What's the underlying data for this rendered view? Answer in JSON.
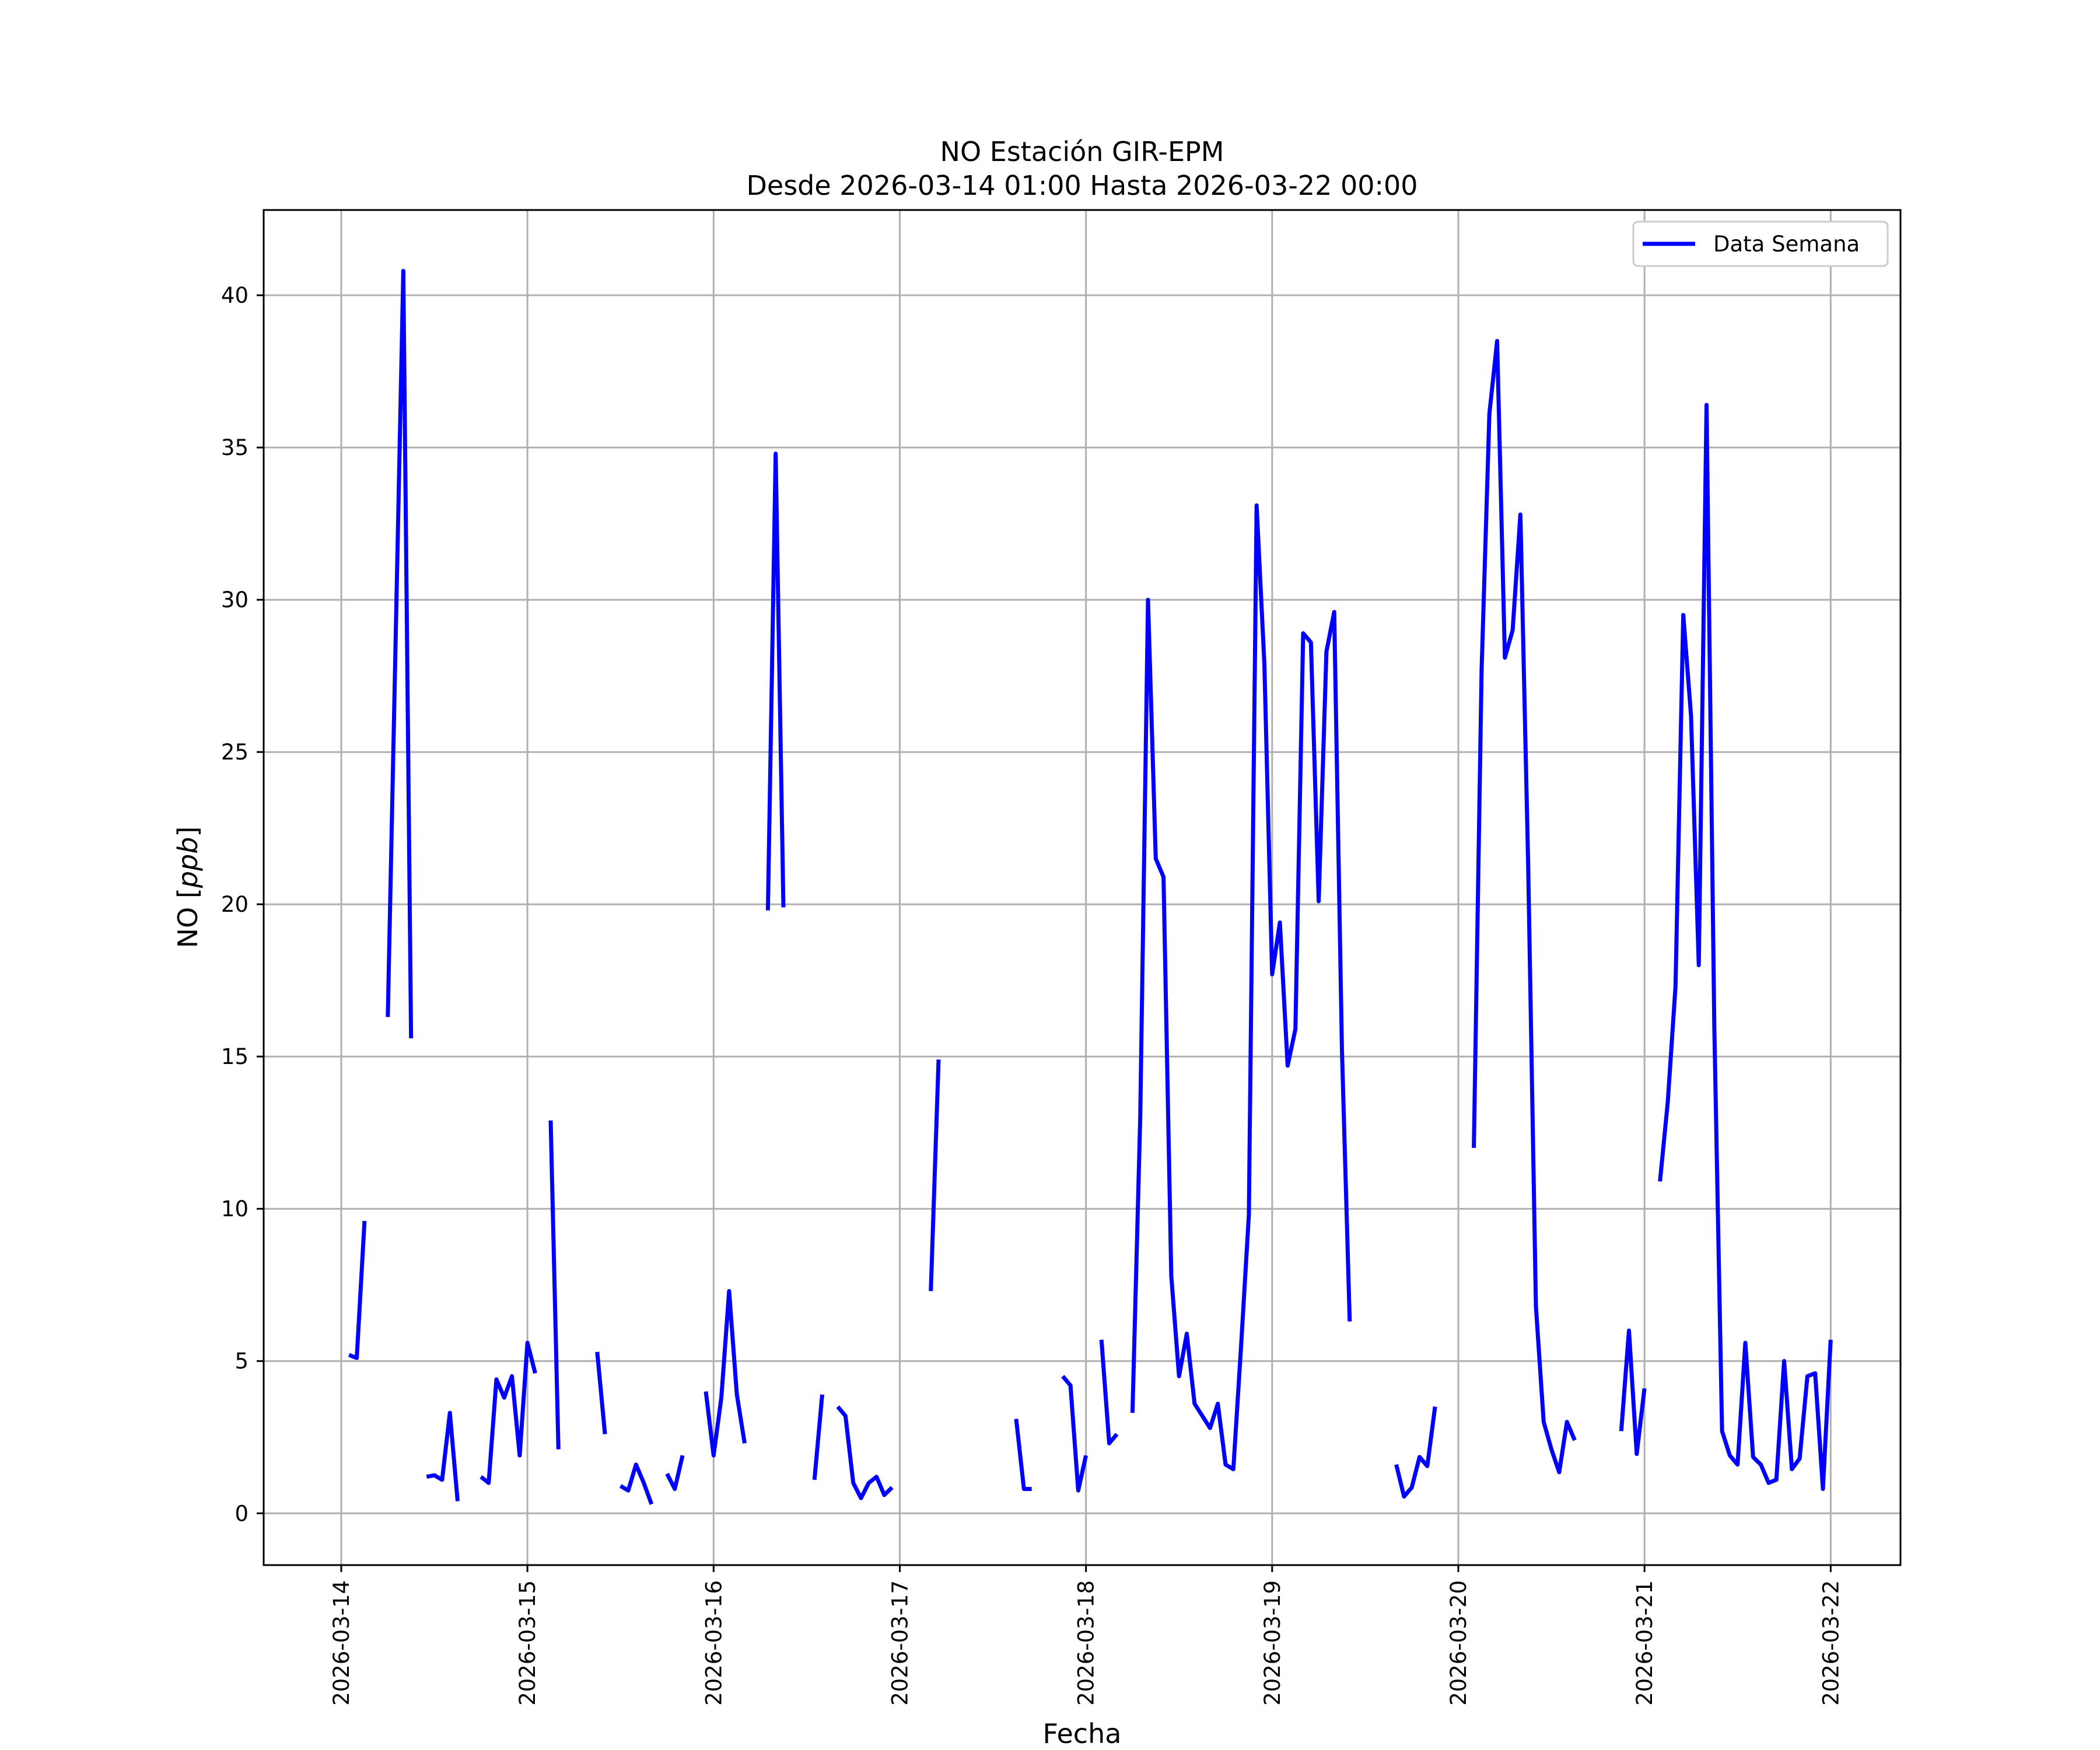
{
  "chart_data": {
    "type": "line",
    "title": "NO Estación GIR-EPM",
    "subtitle": "Desde 2026-03-14 01:00 Hasta 2026-03-22 00:00",
    "xlabel": "Fecha",
    "ylabel": "NO [ppb]",
    "ylabel_text": "NO [",
    "ylabel_unit": "ppb",
    "ylabel_close": "]",
    "x_start": "2026-03-14 00:00",
    "xlim": [
      "2026-03-13 14:00",
      "2026-03-22 09:00"
    ],
    "ylim": [
      -1.7,
      42.8
    ],
    "x_ticks": [
      "2026-03-14",
      "2026-03-15",
      "2026-03-16",
      "2026-03-17",
      "2026-03-18",
      "2026-03-19",
      "2026-03-20",
      "2026-03-21",
      "2026-03-22"
    ],
    "y_ticks": [
      "0",
      "5",
      "10",
      "15",
      "20",
      "25",
      "30",
      "35",
      "40"
    ],
    "y_tick_values": [
      0,
      5,
      10,
      15,
      20,
      25,
      30,
      35,
      40
    ],
    "grid": true,
    "legend_position": "top-right",
    "series": [
      {
        "name": "Data Semana",
        "color": "#0000ff",
        "segments": [
          [
            [
              "2026-03-14 01:00",
              5.2
            ],
            [
              "2026-03-14 02:00",
              5.1
            ],
            [
              "2026-03-14 03:00",
              9.6
            ]
          ],
          [
            [
              "2026-03-14 06:00",
              16.3
            ],
            [
              "2026-03-14 08:00",
              40.8
            ],
            [
              "2026-03-14 09:00",
              15.6
            ]
          ],
          [
            [
              "2026-03-14 11:00",
              1.2
            ],
            [
              "2026-03-14 12:00",
              1.25
            ],
            [
              "2026-03-14 13:00",
              1.1
            ],
            [
              "2026-03-14 14:00",
              3.3
            ],
            [
              "2026-03-14 15:00",
              0.4
            ]
          ],
          [
            [
              "2026-03-14 18:00",
              1.2
            ],
            [
              "2026-03-14 19:00",
              1.0
            ],
            [
              "2026-03-14 20:00",
              4.4
            ],
            [
              "2026-03-14 21:00",
              3.8
            ],
            [
              "2026-03-14 22:00",
              4.5
            ],
            [
              "2026-03-14 23:00",
              1.9
            ],
            [
              "2026-03-15 00:00",
              5.6
            ],
            [
              "2026-03-15 01:00",
              4.6
            ]
          ],
          [
            [
              "2026-03-15 03:00",
              12.9
            ],
            [
              "2026-03-15 04:00",
              2.1
            ]
          ],
          [
            [
              "2026-03-15 09:00",
              5.3
            ],
            [
              "2026-03-15 10:00",
              2.6
            ]
          ],
          [
            [
              "2026-03-15 12:00",
              0.9
            ],
            [
              "2026-03-15 13:00",
              0.75
            ],
            [
              "2026-03-15 14:00",
              1.6
            ],
            [
              "2026-03-15 15:00",
              1.0
            ],
            [
              "2026-03-15 16:00",
              0.3
            ]
          ],
          [
            [
              "2026-03-15 18:00",
              1.3
            ],
            [
              "2026-03-15 19:00",
              0.8
            ],
            [
              "2026-03-15 20:00",
              1.9
            ]
          ],
          [
            [
              "2026-03-15 23:00",
              4.0
            ],
            [
              "2026-03-16 00:00",
              1.9
            ],
            [
              "2026-03-16 01:00",
              3.8
            ],
            [
              "2026-03-16 02:00",
              7.3
            ],
            [
              "2026-03-16 03:00",
              3.9
            ],
            [
              "2026-03-16 04:00",
              2.3
            ]
          ],
          [
            [
              "2026-03-16 07:00",
              19.8
            ],
            [
              "2026-03-16 08:00",
              34.8
            ],
            [
              "2026-03-16 09:00",
              19.9
            ]
          ],
          [
            [
              "2026-03-16 13:00",
              1.1
            ],
            [
              "2026-03-16 14:00",
              3.9
            ]
          ],
          [
            [
              "2026-03-16 16:00",
              3.5
            ],
            [
              "2026-03-16 17:00",
              3.2
            ],
            [
              "2026-03-16 18:00",
              1.0
            ],
            [
              "2026-03-16 19:00",
              0.5
            ],
            [
              "2026-03-16 20:00",
              1.0
            ],
            [
              "2026-03-16 21:00",
              1.2
            ],
            [
              "2026-03-16 22:00",
              0.6
            ],
            [
              "2026-03-16 23:00",
              0.85
            ]
          ],
          [
            [
              "2026-03-17 04:00",
              7.3
            ],
            [
              "2026-03-17 05:00",
              14.9
            ]
          ],
          [
            [
              "2026-03-17 15:00",
              3.1
            ],
            [
              "2026-03-17 16:00",
              0.8
            ],
            [
              "2026-03-17 17:00",
              0.8
            ]
          ],
          [
            [
              "2026-03-17 21:00",
              4.5
            ],
            [
              "2026-03-17 22:00",
              4.2
            ],
            [
              "2026-03-17 23:00",
              0.75
            ],
            [
              "2026-03-18 00:00",
              1.9
            ]
          ],
          [
            [
              "2026-03-18 02:00",
              5.7
            ],
            [
              "2026-03-18 03:00",
              2.3
            ],
            [
              "2026-03-18 04:00",
              2.6
            ]
          ],
          [
            [
              "2026-03-18 06:00",
              3.3
            ],
            [
              "2026-03-18 07:00",
              13.0
            ],
            [
              "2026-03-18 08:00",
              30.0
            ],
            [
              "2026-03-18 09:00",
              21.5
            ],
            [
              "2026-03-18 10:00",
              20.9
            ],
            [
              "2026-03-18 11:00",
              7.8
            ],
            [
              "2026-03-18 12:00",
              4.5
            ],
            [
              "2026-03-18 13:00",
              5.9
            ],
            [
              "2026-03-18 14:00",
              3.6
            ],
            [
              "2026-03-18 15:00",
              3.2
            ],
            [
              "2026-03-18 16:00",
              2.8
            ],
            [
              "2026-03-18 17:00",
              3.6
            ],
            [
              "2026-03-18 18:00",
              1.6
            ],
            [
              "2026-03-18 19:00",
              1.45
            ],
            [
              "2026-03-18 20:00",
              5.5
            ],
            [
              "2026-03-18 21:00",
              9.8
            ],
            [
              "2026-03-18 22:00",
              33.1
            ],
            [
              "2026-03-18 23:00",
              27.9
            ],
            [
              "2026-03-19 00:00",
              17.7
            ],
            [
              "2026-03-19 01:00",
              19.4
            ],
            [
              "2026-03-19 02:00",
              14.7
            ],
            [
              "2026-03-19 03:00",
              15.9
            ],
            [
              "2026-03-19 04:00",
              28.9
            ],
            [
              "2026-03-19 05:00",
              28.6
            ],
            [
              "2026-03-19 06:00",
              20.1
            ],
            [
              "2026-03-19 07:00",
              28.3
            ],
            [
              "2026-03-19 08:00",
              29.6
            ],
            [
              "2026-03-19 09:00",
              15.2
            ],
            [
              "2026-03-19 10:00",
              6.3
            ]
          ],
          [
            [
              "2026-03-19 16:00",
              1.6
            ],
            [
              "2026-03-19 17:00",
              0.55
            ],
            [
              "2026-03-19 18:00",
              0.85
            ],
            [
              "2026-03-19 19:00",
              1.85
            ],
            [
              "2026-03-19 20:00",
              1.55
            ],
            [
              "2026-03-19 21:00",
              3.5
            ]
          ],
          [
            [
              "2026-03-20 02:00",
              12.0
            ],
            [
              "2026-03-20 03:00",
              27.7
            ],
            [
              "2026-03-20 04:00",
              36.1
            ],
            [
              "2026-03-20 05:00",
              38.5
            ],
            [
              "2026-03-20 06:00",
              28.1
            ],
            [
              "2026-03-20 07:00",
              29.0
            ],
            [
              "2026-03-20 08:00",
              32.8
            ],
            [
              "2026-03-20 09:00",
              21.3
            ],
            [
              "2026-03-20 10:00",
              6.8
            ],
            [
              "2026-03-20 11:00",
              3.0
            ],
            [
              "2026-03-20 12:00",
              2.1
            ],
            [
              "2026-03-20 13:00",
              1.35
            ],
            [
              "2026-03-20 14:00",
              3.0
            ],
            [
              "2026-03-20 15:00",
              2.4
            ]
          ],
          [
            [
              "2026-03-20 21:00",
              2.7
            ],
            [
              "2026-03-20 22:00",
              6.0
            ],
            [
              "2026-03-20 23:00",
              1.95
            ],
            [
              "2026-03-21 00:00",
              4.1
            ]
          ],
          [
            [
              "2026-03-21 02:00",
              10.9
            ],
            [
              "2026-03-21 03:00",
              13.5
            ],
            [
              "2026-03-21 04:00",
              17.3
            ],
            [
              "2026-03-21 05:00",
              29.5
            ],
            [
              "2026-03-21 06:00",
              26.2
            ],
            [
              "2026-03-21 07:00",
              18.0
            ],
            [
              "2026-03-21 08:00",
              36.4
            ],
            [
              "2026-03-21 09:00",
              16.0
            ],
            [
              "2026-03-21 10:00",
              2.7
            ],
            [
              "2026-03-21 11:00",
              1.9
            ],
            [
              "2026-03-21 12:00",
              1.6
            ],
            [
              "2026-03-21 13:00",
              5.6
            ],
            [
              "2026-03-21 14:00",
              1.85
            ],
            [
              "2026-03-21 15:00",
              1.6
            ],
            [
              "2026-03-21 16:00",
              1.0
            ],
            [
              "2026-03-21 17:00",
              1.1
            ],
            [
              "2026-03-21 18:00",
              5.0
            ],
            [
              "2026-03-21 19:00",
              1.45
            ],
            [
              "2026-03-21 20:00",
              1.8
            ],
            [
              "2026-03-21 21:00",
              4.5
            ],
            [
              "2026-03-21 22:00",
              4.6
            ],
            [
              "2026-03-21 23:00",
              0.8
            ],
            [
              "2026-03-22 00:00",
              5.7
            ]
          ]
        ]
      }
    ]
  }
}
